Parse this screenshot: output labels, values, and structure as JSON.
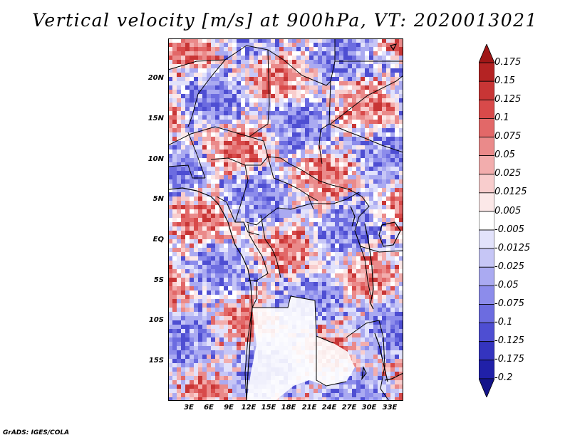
{
  "title": "Vertical velocity [m/s] at 900hPa, VT: 2020013021",
  "credit": "GrADS: IGES/COLA",
  "map": {
    "lat_ticks": [
      "20N",
      "15N",
      "10N",
      "5N",
      "EQ",
      "5S",
      "10S",
      "15S"
    ],
    "lon_ticks": [
      "3E",
      "6E",
      "9E",
      "12E",
      "15E",
      "18E",
      "21E",
      "24E",
      "27E",
      "30E",
      "33E"
    ]
  },
  "colorbar": {
    "labels": [
      "0.175",
      "0.15",
      "0.125",
      "0.1",
      "0.075",
      "0.05",
      "0.025",
      "0.0125",
      "0.005",
      "-0.005",
      "-0.0125",
      "-0.025",
      "-0.05",
      "-0.075",
      "-0.1",
      "-0.125",
      "-0.175",
      "-0.2"
    ],
    "colors": [
      "#a01717",
      "#b42323",
      "#c83535",
      "#d84a4a",
      "#e26868",
      "#ea8a8a",
      "#f2adad",
      "#f8cdcd",
      "#fce8e8",
      "#ffffff",
      "#e2e2fb",
      "#c6c6f6",
      "#aaaaf1",
      "#8c8ceb",
      "#6c6ce0",
      "#4e4ed2",
      "#3434bf",
      "#2020a8",
      "#13138a"
    ]
  }
}
